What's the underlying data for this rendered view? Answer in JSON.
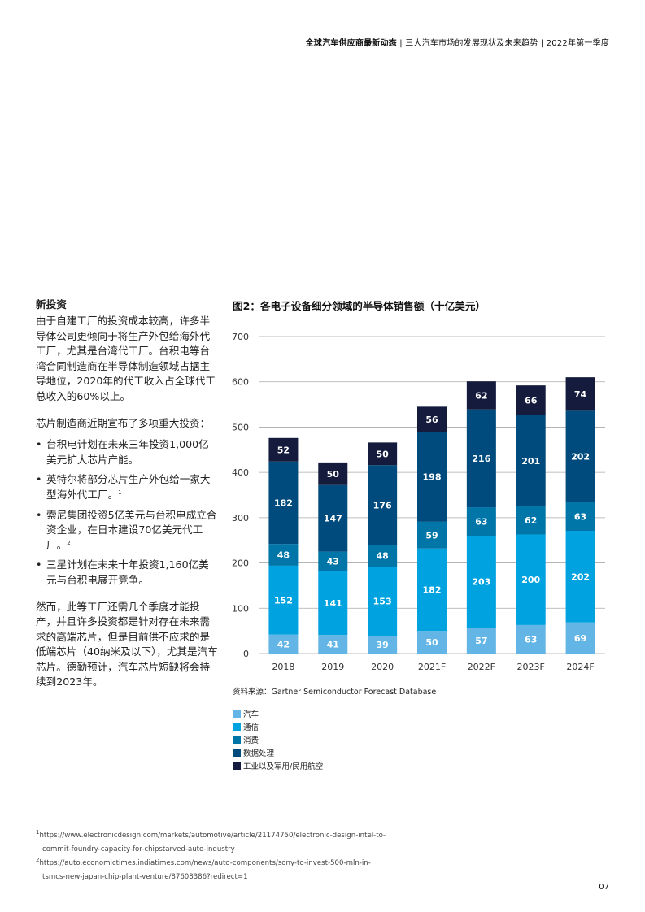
{
  "header": {
    "part1": "全球汽车供应商最新动态",
    "sep": " | ",
    "part2": "三大汽车市场的发展现状及未来趋势",
    "part3": "2022年第一季度"
  },
  "left": {
    "heading": "新投资",
    "para1": "由于自建工厂的投资成本较高，许多半导体公司更倾向于将生产外包给海外代工厂，尤其是台湾代工厂。台积电等台湾合同制造商在半导体制造领域占据主导地位，2020年的代工收入占全球代工总收入的60%以上。",
    "para2": "芯片制造商近期宣布了多项重大投资：",
    "bullets": [
      "台积电计划在未来三年投资1,000亿美元扩大芯片产能。",
      "英特尔将部分芯片生产外包给一家大型海外代工厂。",
      "索尼集团投资5亿美元与台积电成立合资企业，在日本建设70亿美元代工厂。",
      "三星计划在未来十年投资1,160亿美元与台积电展开竞争。"
    ],
    "bullet_sups": [
      "",
      "1",
      "2",
      ""
    ],
    "para3": "然而，此等工厂还需几个季度才能投产，并且许多投资都是针对存在未来需求的高端芯片，但是目前供不应求的是低端芯片（40纳米及以下），尤其是汽车芯片。德勤预计，汽车芯片短缺将会持续到2023年。"
  },
  "figure": {
    "title": "图2：各电子设备细分领域的半导体销售额（十亿美元）",
    "source": "资料来源：Gartner Semiconductor Forecast Database"
  },
  "chart_data": {
    "type": "bar",
    "stacked": true,
    "title": "图2：各电子设备细分领域的半导体销售额（十亿美元）",
    "categories": [
      "2018",
      "2019",
      "2020",
      "2021F",
      "2022F",
      "2023F",
      "2024F"
    ],
    "ylim": [
      0,
      700
    ],
    "yticks": [
      0,
      100,
      200,
      300,
      400,
      500,
      600,
      700
    ],
    "grid": true,
    "legend_position": "bottom-left",
    "series": [
      {
        "name": "汽车",
        "color": "#62b5e5",
        "values": [
          42,
          41,
          39,
          50,
          57,
          63,
          69
        ]
      },
      {
        "name": "通信",
        "color": "#00a3e0",
        "values": [
          152,
          141,
          153,
          182,
          203,
          200,
          202
        ]
      },
      {
        "name": "消费",
        "color": "#0076a8",
        "values": [
          48,
          43,
          48,
          59,
          63,
          62,
          63
        ]
      },
      {
        "name": "数据处理",
        "color": "#004b7d",
        "values": [
          182,
          147,
          176,
          198,
          216,
          201,
          202
        ]
      },
      {
        "name": "工业以及军用/民用航空",
        "color": "#141b3d",
        "values": [
          52,
          50,
          50,
          56,
          62,
          66,
          74
        ]
      }
    ]
  },
  "footnotes": [
    {
      "num": "1",
      "line1": "https://www.electronicdesign.com/markets/automotive/article/21174750/electronic-design-intel-to-",
      "line2": "commit-foundry-capacity-for-chipstarved-auto-industry"
    },
    {
      "num": "2",
      "line1": "https://auto.economictimes.indiatimes.com/news/auto-components/sony-to-invest-500-mln-in-",
      "line2": "tsmcs-new-japan-chip-plant-venture/87608386?redirect=1"
    }
  ],
  "page_number": "07"
}
